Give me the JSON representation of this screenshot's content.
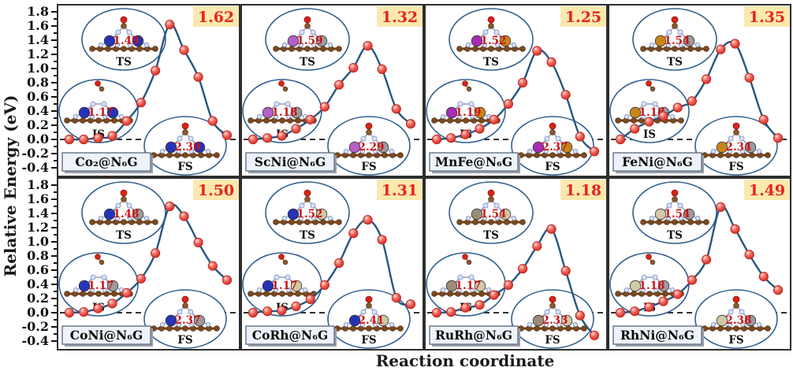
{
  "chart_data": {
    "type": "line",
    "title": "",
    "xlabel": "Reaction coordinate",
    "ylabel": "Relative Energy (eV)",
    "ylim": [
      -0.4,
      1.8
    ],
    "yticks": [
      1.8,
      1.6,
      1.4,
      1.2,
      1.0,
      0.8,
      0.6,
      0.4,
      0.2,
      0.0,
      -0.2,
      -0.4
    ],
    "x": [
      1,
      2,
      3,
      4,
      5,
      6,
      7,
      8,
      9,
      10,
      11,
      12
    ],
    "grid": "off",
    "zero_line": "dashed",
    "inset_states": {
      "ts": "TS",
      "is": "IS",
      "fs": "FS"
    },
    "panels": [
      {
        "label": "Co₂@N₆G",
        "barrier": "1.62",
        "ts_bond": "1.49",
        "is_bond": "1.17",
        "fs_bond": "2.39",
        "metal_left": {
          "element": "Co",
          "color": "#2633b8"
        },
        "metal_right": {
          "element": "Co",
          "color": "#2633b8"
        },
        "energies": [
          0.0,
          0.0,
          0.02,
          0.05,
          0.26,
          0.52,
          0.97,
          1.62,
          1.26,
          0.88,
          0.26,
          0.06
        ]
      },
      {
        "label": "ScNi@N₆G",
        "barrier": "1.32",
        "ts_bond": "1.59",
        "is_bond": "1.18",
        "fs_bond": "2.29",
        "metal_left": {
          "element": "Sc",
          "color": "#b45fc8"
        },
        "metal_right": {
          "element": "Ni",
          "color": "#9b9ba1"
        },
        "energies": [
          0.0,
          0.02,
          0.05,
          0.15,
          0.28,
          0.46,
          0.77,
          1.01,
          1.32,
          0.99,
          0.43,
          0.22
        ]
      },
      {
        "label": "MnFe@N₆G",
        "barrier": "1.25",
        "ts_bond": "1.52",
        "is_bond": "1.19",
        "fs_bond": "2.37",
        "metal_left": {
          "element": "Mn",
          "color": "#a82cb4"
        },
        "metal_right": {
          "element": "Fe",
          "color": "#c8861b"
        },
        "energies": [
          0.0,
          0.02,
          0.07,
          0.15,
          0.28,
          0.5,
          0.8,
          1.25,
          1.09,
          0.63,
          0.04,
          -0.17
        ]
      },
      {
        "label": "FeNi@N₆G",
        "barrier": "1.35",
        "ts_bond": "1.54",
        "is_bond": "1.18",
        "fs_bond": "2.34",
        "metal_left": {
          "element": "Fe",
          "color": "#c8861b"
        },
        "metal_right": {
          "element": "Ni",
          "color": "#9b9ba1"
        },
        "energies": [
          0.0,
          0.15,
          0.25,
          0.33,
          0.45,
          0.54,
          0.85,
          1.27,
          1.35,
          0.87,
          0.28,
          0.02
        ]
      },
      {
        "label": "CoNi@N₆G",
        "barrier": "1.50",
        "ts_bond": "1.48",
        "is_bond": "1.17",
        "fs_bond": "2.37",
        "metal_left": {
          "element": "Co",
          "color": "#2633b8"
        },
        "metal_right": {
          "element": "Ni",
          "color": "#9b9ba1"
        },
        "energies": [
          0.0,
          0.01,
          0.06,
          0.13,
          0.28,
          0.48,
          0.84,
          1.5,
          1.36,
          0.99,
          0.66,
          0.46
        ]
      },
      {
        "label": "CoRh@N₆G",
        "barrier": "1.31",
        "ts_bond": "1.52",
        "is_bond": "1.17",
        "fs_bond": "2.41",
        "metal_left": {
          "element": "Co",
          "color": "#2633b8"
        },
        "metal_right": {
          "element": "Rh",
          "color": "#cfc9a6"
        },
        "energies": [
          0.0,
          0.02,
          0.03,
          0.09,
          0.19,
          0.39,
          0.7,
          1.12,
          1.31,
          1.03,
          0.21,
          0.12
        ]
      },
      {
        "label": "RuRh@N₆G",
        "barrier": "1.18",
        "ts_bond": "1.54",
        "is_bond": "1.17",
        "fs_bond": "2.33",
        "metal_left": {
          "element": "Ru",
          "color": "#9b8d78"
        },
        "metal_right": {
          "element": "Rh",
          "color": "#cfc9a6"
        },
        "energies": [
          0.0,
          0.01,
          0.07,
          0.11,
          0.25,
          0.39,
          0.62,
          0.94,
          1.18,
          0.59,
          -0.04,
          -0.32
        ]
      },
      {
        "label": "RhNi@N₆G",
        "barrier": "1.49",
        "ts_bond": "1.54",
        "is_bond": "1.18",
        "fs_bond": "2.38",
        "metal_left": {
          "element": "Rh",
          "color": "#cfc9a6"
        },
        "metal_right": {
          "element": "Ni",
          "color": "#9b9ba1"
        },
        "energies": [
          0.0,
          0.02,
          0.08,
          0.16,
          0.26,
          0.46,
          0.75,
          1.49,
          1.18,
          0.82,
          0.51,
          0.32
        ]
      }
    ],
    "colors": {
      "curve": "#27567f",
      "point_fill": "#e94b44",
      "point_edge": "#c0261f",
      "badge_bg": "#fbe8af",
      "badge_text": "#e8241c",
      "label_bg": "#eef3fb",
      "label_border": "#6b7b8d",
      "label_shadow": "#9aa0a8",
      "bond_text": "#cc1414",
      "panel_border": "#2e2e2e",
      "inset_border": "#33608f",
      "carbon": "#7a4a21",
      "carbon_dark": "#58341a",
      "nitrogen": "#dce4f5",
      "nitrogen_edge": "#8b9dc9",
      "oxygen": "#d92318",
      "zero_line": "#141414"
    }
  }
}
